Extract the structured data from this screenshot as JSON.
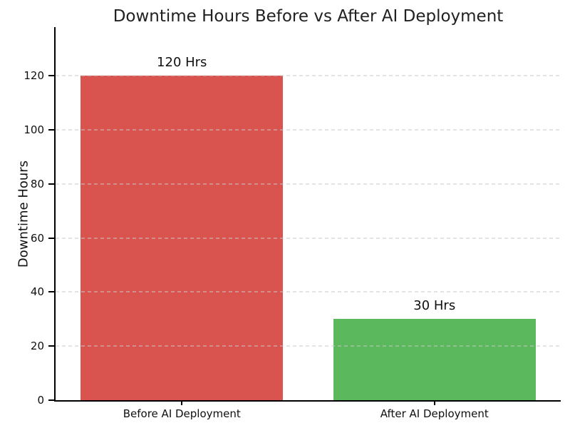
{
  "page": {
    "background": "#ffffff"
  },
  "chart_data": {
    "type": "bar",
    "title": "Downtime Hours Before vs After AI Deployment",
    "xlabel": "",
    "ylabel": "Downtime Hours",
    "categories": [
      "Before AI Deployment",
      "After AI Deployment"
    ],
    "values": [
      120,
      30
    ],
    "value_labels": [
      "120 Hrs",
      "30 Hrs"
    ],
    "bar_colors": [
      "#d9534f",
      "#5cb85c"
    ],
    "bar_width_fraction": 0.8,
    "ylim": [
      0,
      138
    ],
    "yticks": [
      0,
      20,
      40,
      60,
      80,
      100,
      120
    ],
    "grid": "horizontal-dashed",
    "grid_color": "#c9c9c9",
    "spine_color": "#000000",
    "text_color": "#101010",
    "legend": "none"
  }
}
